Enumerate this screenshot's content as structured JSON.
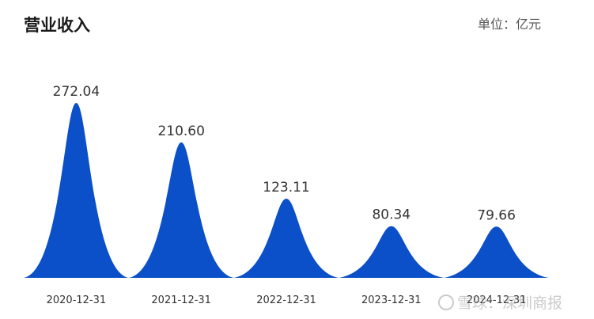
{
  "title": "营业收入",
  "unit_label": "单位：亿元",
  "watermark": "雪球：深圳商报",
  "colors": {
    "fill": "#0b50c8"
  },
  "chart_data": {
    "type": "area",
    "title": "营业收入",
    "unit": "单位：亿元",
    "categories": [
      "2020-12-31",
      "2021-12-31",
      "2022-12-31",
      "2023-12-31",
      "2024-12-31"
    ],
    "values": [
      272.04,
      210.6,
      123.11,
      80.34,
      79.66
    ],
    "value_labels": [
      "272.04",
      "210.60",
      "123.11",
      "80.34",
      "79.66"
    ],
    "ylim": [
      0,
      272.04
    ],
    "grid": false,
    "legend": "none"
  }
}
